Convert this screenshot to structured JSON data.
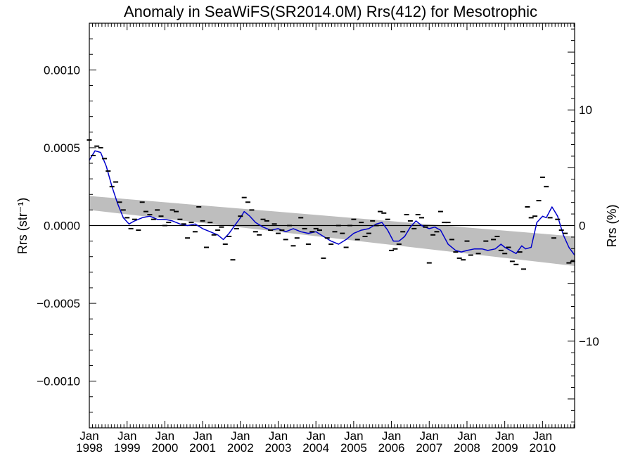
{
  "chart_data": {
    "type": "line",
    "title": "Anomaly in SeaWiFS(SR2014.0M) Rrs(412) for Mesotrophic",
    "ylabel": "Rrs (str⁻¹)",
    "ylabel_right": "Rrs (%)",
    "xlim": [
      1998.0,
      2010.85
    ],
    "ylim": [
      -0.0013,
      0.0013
    ],
    "ylim_right": [
      -17.5,
      17.5
    ],
    "y_ticks": [
      {
        "value": 0.001,
        "label": "0.0010"
      },
      {
        "value": 0.0005,
        "label": "0.0005"
      },
      {
        "value": 0.0,
        "label": "0.0000"
      },
      {
        "value": -0.0005,
        "label": "−0.0005"
      },
      {
        "value": -0.001,
        "label": "−0.0010"
      }
    ],
    "y_ticks_right": [
      {
        "value": 10,
        "label": "10"
      },
      {
        "value": 0,
        "label": "0"
      },
      {
        "value": -10,
        "label": "−10"
      }
    ],
    "x_ticks": [
      {
        "value": 1998,
        "month": "Jan",
        "year": "1998"
      },
      {
        "value": 1999,
        "month": "Jan",
        "year": "1999"
      },
      {
        "value": 2000,
        "month": "Jan",
        "year": "2000"
      },
      {
        "value": 2001,
        "month": "Jan",
        "year": "2001"
      },
      {
        "value": 2002,
        "month": "Jan",
        "year": "2002"
      },
      {
        "value": 2003,
        "month": "Jan",
        "year": "2003"
      },
      {
        "value": 2004,
        "month": "Jan",
        "year": "2004"
      },
      {
        "value": 2005,
        "month": "Jan",
        "year": "2005"
      },
      {
        "value": 2006,
        "month": "Jan",
        "year": "2006"
      },
      {
        "value": 2007,
        "month": "Jan",
        "year": "2007"
      },
      {
        "value": 2008,
        "month": "Jan",
        "year": "2008"
      },
      {
        "value": 2009,
        "month": "Jan",
        "year": "2009"
      },
      {
        "value": 2010,
        "month": "Jan",
        "year": "2010"
      }
    ],
    "zero_line": 0,
    "trend_band": {
      "x": [
        1998.0,
        2010.85
      ],
      "upper": [
        0.00019,
        -7e-05
      ],
      "lower": [
        0.0001,
        -0.00026
      ],
      "color": "#bebebe"
    },
    "series": [
      {
        "style": "line",
        "color": "#0000cc",
        "x": [
          1998.0,
          1998.15,
          1998.3,
          1998.45,
          1998.6,
          1998.75,
          1998.9,
          1999.05,
          1999.2,
          1999.4,
          1999.6,
          1999.8,
          2000.0,
          2000.2,
          2000.4,
          2000.6,
          2000.8,
          2001.0,
          2001.2,
          2001.4,
          2001.55,
          2001.7,
          2001.85,
          2002.0,
          2002.1,
          2002.25,
          2002.4,
          2002.6,
          2002.8,
          2003.0,
          2003.2,
          2003.4,
          2003.6,
          2003.8,
          2004.0,
          2004.2,
          2004.4,
          2004.6,
          2004.8,
          2005.0,
          2005.2,
          2005.4,
          2005.6,
          2005.75,
          2005.9,
          2006.05,
          2006.2,
          2006.35,
          2006.5,
          2006.65,
          2006.8,
          2007.0,
          2007.15,
          2007.3,
          2007.5,
          2007.7,
          2007.85,
          2008.0,
          2008.2,
          2008.4,
          2008.55,
          2008.75,
          2008.9,
          2009.0,
          2009.15,
          2009.3,
          2009.45,
          2009.55,
          2009.7,
          2009.85,
          2010.0,
          2010.1,
          2010.25,
          2010.4,
          2010.55,
          2010.7,
          2010.85
        ],
        "y": [
          0.00042,
          0.00048,
          0.00047,
          0.00038,
          0.00025,
          0.00014,
          5e-05,
          1e-05,
          3e-05,
          5e-05,
          6e-05,
          4e-05,
          4e-05,
          3e-05,
          1e-05,
          0.0,
          1e-05,
          -2e-05,
          -4e-05,
          -6e-05,
          -9e-05,
          -5e-05,
          0.0,
          5e-05,
          9e-05,
          6e-05,
          2e-05,
          -1e-05,
          -3e-05,
          -2e-05,
          -4e-05,
          -2e-05,
          -4e-05,
          -5e-05,
          -4e-05,
          -7e-05,
          -0.0001,
          -0.00012,
          -9e-05,
          -5e-05,
          -3e-05,
          -2e-05,
          1e-05,
          2e-05,
          -3e-05,
          -0.0001,
          -0.0001,
          -7e-05,
          -1e-05,
          3e-05,
          0.0,
          -2e-05,
          -1e-05,
          -3e-05,
          -0.00012,
          -0.00016,
          -0.00017,
          -0.00016,
          -0.00015,
          -0.00015,
          -0.00016,
          -0.00015,
          -0.00012,
          -0.00014,
          -0.00016,
          -0.00018,
          -0.00013,
          -0.00015,
          -0.00014,
          2e-05,
          6e-05,
          5e-05,
          0.00012,
          6e-05,
          -6e-05,
          -0.00014,
          -0.00019
        ]
      },
      {
        "style": "dash-marker",
        "color": "#000000",
        "x": [
          1998.0,
          1998.1,
          1998.2,
          1998.3,
          1998.4,
          1998.5,
          1998.6,
          1998.7,
          1998.8,
          1998.9,
          1999.0,
          1999.1,
          1999.2,
          1999.3,
          1999.4,
          1999.5,
          1999.6,
          1999.7,
          1999.8,
          1999.9,
          2000.0,
          2000.1,
          2000.2,
          2000.3,
          2000.4,
          2000.5,
          2000.6,
          2000.7,
          2000.8,
          2000.9,
          2001.0,
          2001.1,
          2001.2,
          2001.3,
          2001.4,
          2001.5,
          2001.6,
          2001.7,
          2001.8,
          2001.9,
          2002.0,
          2002.1,
          2002.2,
          2002.3,
          2002.4,
          2002.5,
          2002.6,
          2002.7,
          2002.8,
          2002.9,
          2003.0,
          2003.1,
          2003.2,
          2003.3,
          2003.4,
          2003.5,
          2003.6,
          2003.7,
          2003.8,
          2003.9,
          2004.0,
          2004.1,
          2004.2,
          2004.3,
          2004.4,
          2004.5,
          2004.6,
          2004.7,
          2004.8,
          2004.9,
          2005.0,
          2005.1,
          2005.2,
          2005.3,
          2005.4,
          2005.5,
          2005.6,
          2005.7,
          2005.8,
          2005.9,
          2006.0,
          2006.1,
          2006.2,
          2006.3,
          2006.4,
          2006.5,
          2006.6,
          2006.7,
          2006.8,
          2006.9,
          2007.0,
          2007.1,
          2007.2,
          2007.3,
          2007.4,
          2007.5,
          2007.6,
          2007.7,
          2007.8,
          2007.9,
          2008.0,
          2008.1,
          2008.3,
          2008.5,
          2008.7,
          2008.8,
          2008.9,
          2009.0,
          2009.1,
          2009.2,
          2009.3,
          2009.4,
          2009.5,
          2009.6,
          2009.7,
          2009.8,
          2009.9,
          2010.0,
          2010.1,
          2010.2,
          2010.3,
          2010.4,
          2010.5,
          2010.6,
          2010.7,
          2010.8
        ],
        "y": [
          0.00055,
          0.00045,
          0.00051,
          0.0005,
          0.00043,
          0.00035,
          0.00025,
          0.00028,
          0.00015,
          0.0001,
          5e-05,
          -2e-05,
          4e-05,
          -3e-05,
          0.00015,
          9e-05,
          7e-05,
          4e-05,
          0.0001,
          6e-05,
          0.0,
          2e-05,
          0.0001,
          9e-05,
          4e-05,
          1e-05,
          -8e-05,
          2e-05,
          -4e-05,
          0.00012,
          3e-05,
          -0.00014,
          2e-05,
          -6e-05,
          -3e-05,
          -1e-05,
          -0.00012,
          -7e-05,
          -0.00022,
          -2e-05,
          6e-05,
          0.00018,
          0.00015,
          0.0001,
          -4e-05,
          -6e-05,
          4e-05,
          3e-05,
          -3e-05,
          1e-05,
          -5e-05,
          -3e-05,
          -9e-05,
          0.0,
          -0.00013,
          -8e-05,
          5e-05,
          -2e-05,
          -0.00012,
          -4e-05,
          -2e-05,
          -3e-05,
          -0.00021,
          -8e-05,
          -0.00012,
          -4e-05,
          0.0,
          -5e-05,
          -0.00014,
          0.0,
          4e-05,
          -9e-05,
          2e-05,
          -7e-05,
          -5e-05,
          3e-05,
          0.0,
          9e-05,
          8e-05,
          4e-05,
          -0.00016,
          -0.00015,
          -0.00012,
          -4e-05,
          7e-05,
          3e-05,
          -2e-05,
          7e-05,
          5e-05,
          -1e-05,
          -0.00024,
          -6e-05,
          -4e-05,
          9e-05,
          2e-05,
          2e-05,
          -9e-05,
          -0.00017,
          -0.00021,
          -0.00022,
          -0.0001,
          -0.00019,
          -0.00018,
          -0.0001,
          -9e-05,
          -7e-05,
          -0.00016,
          -0.00018,
          -0.00014,
          -0.00023,
          -0.00025,
          -0.00017,
          -0.00028,
          0.00012,
          5e-05,
          6e-05,
          0.00016,
          0.00031,
          0.00025,
          5e-05,
          -8e-05,
          4e-05,
          -3e-05,
          -5e-05,
          -0.00024,
          -0.00023
        ]
      }
    ]
  }
}
